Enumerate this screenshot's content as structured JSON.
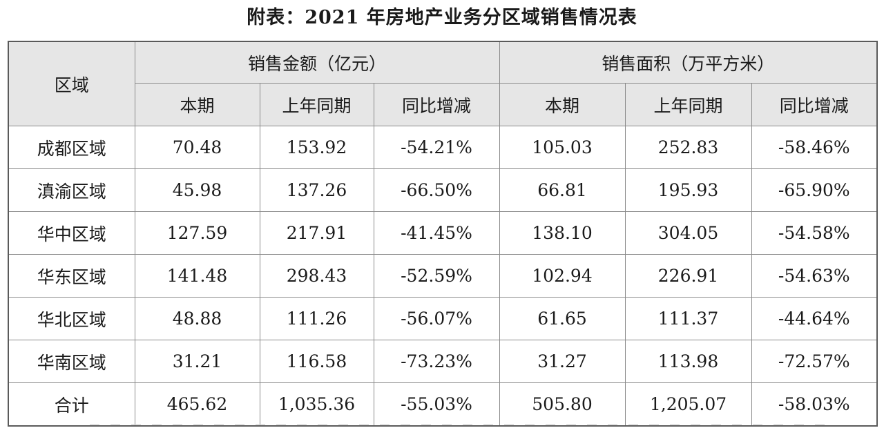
{
  "title": "附表：2021 年房地产业务分区域销售情况表",
  "table": {
    "region_header": "区域",
    "group_headers": {
      "amount": "销售金额（亿元）",
      "area": "销售面积（万平方米）"
    },
    "sub_headers": [
      "本期",
      "上年同期",
      "同比增减",
      "本期",
      "上年同期",
      "同比增减"
    ],
    "rows": [
      {
        "region": "成都区域",
        "values": [
          "70.48",
          "153.92",
          "-54.21%",
          "105.03",
          "252.83",
          "-58.46%"
        ]
      },
      {
        "region": "滇渝区域",
        "values": [
          "45.98",
          "137.26",
          "-66.50%",
          "66.81",
          "195.93",
          "-65.90%"
        ]
      },
      {
        "region": "华中区域",
        "values": [
          "127.59",
          "217.91",
          "-41.45%",
          "138.10",
          "304.05",
          "-54.58%"
        ]
      },
      {
        "region": "华东区域",
        "values": [
          "141.48",
          "298.43",
          "-52.59%",
          "102.94",
          "226.91",
          "-54.63%"
        ]
      },
      {
        "region": "华北区域",
        "values": [
          "48.88",
          "111.26",
          "-56.07%",
          "61.65",
          "111.37",
          "-44.64%"
        ]
      },
      {
        "region": "华南区域",
        "values": [
          "31.21",
          "116.58",
          "-73.23%",
          "31.27",
          "113.98",
          "-72.57%"
        ]
      },
      {
        "region": "合计",
        "values": [
          "465.62",
          "1,035.36",
          "-55.03%",
          "505.80",
          "1,205.07",
          "-58.03%"
        ]
      }
    ]
  }
}
